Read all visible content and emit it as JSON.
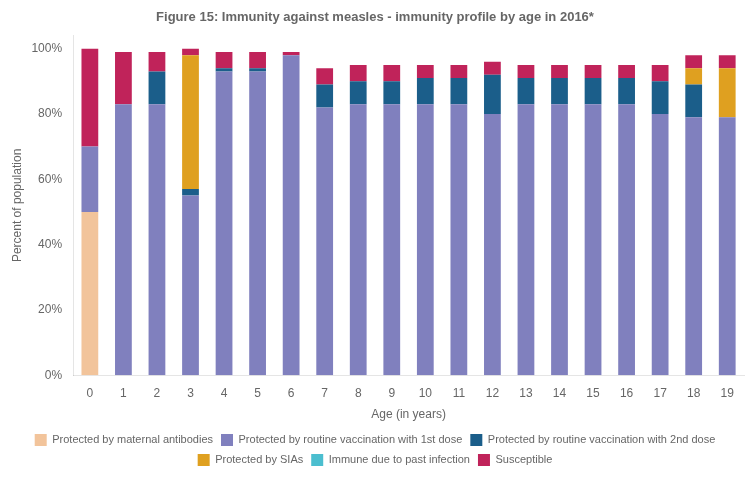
{
  "chart_data": {
    "type": "bar",
    "title": "Figure 15: Immunity against measles - immunity profile by age in 2016*",
    "xlabel": "Age (in years)",
    "ylabel": "Percent of population",
    "categories": [
      "0",
      "1",
      "2",
      "3",
      "4",
      "5",
      "6",
      "7",
      "8",
      "9",
      "10",
      "11",
      "12",
      "13",
      "14",
      "15",
      "16",
      "17",
      "18",
      "19"
    ],
    "series": [
      {
        "name": "Protected by maternal antibodies",
        "color": "#F2C49B",
        "values": [
          50,
          0,
          0,
          0,
          0,
          0,
          0,
          0,
          0,
          0,
          0,
          0,
          0,
          0,
          0,
          0,
          0,
          0,
          0,
          0
        ]
      },
      {
        "name": "Protected by routine vaccination with 1st dose",
        "color": "#8080BE",
        "values": [
          20,
          83,
          83,
          55,
          93,
          93,
          98,
          82,
          83,
          83,
          83,
          83,
          80,
          83,
          83,
          83,
          83,
          80,
          79,
          79
        ]
      },
      {
        "name": "Protected by routine vaccination with 2nd dose",
        "color": "#1B5E8A",
        "values": [
          0,
          0,
          10,
          2,
          1,
          1,
          0,
          7,
          7,
          7,
          8,
          8,
          12,
          8,
          8,
          8,
          8,
          10,
          10,
          0
        ]
      },
      {
        "name": "Protected by SIAs",
        "color": "#DFA020",
        "values": [
          0,
          0,
          0,
          41,
          0,
          0,
          0,
          0,
          0,
          0,
          0,
          0,
          0,
          0,
          0,
          0,
          0,
          0,
          5,
          15
        ]
      },
      {
        "name": "Immune due to past infection",
        "color": "#4BBECF",
        "values": [
          0,
          0,
          0,
          0,
          0,
          0,
          0,
          0,
          0,
          0,
          0,
          0,
          0,
          0,
          0,
          0,
          0,
          0,
          0,
          0
        ]
      },
      {
        "name": "Susceptible",
        "color": "#C0235A",
        "values": [
          30,
          16,
          6,
          2,
          5,
          5,
          1,
          5,
          5,
          5,
          4,
          4,
          4,
          4,
          4,
          4,
          4,
          5,
          4,
          4
        ]
      }
    ],
    "stacked": true,
    "legend": "bottom",
    "grid": false,
    "ylim": [
      0,
      104
    ],
    "yticks": [
      {
        "value": 0,
        "label": "0%"
      },
      {
        "value": 20,
        "label": "20%"
      },
      {
        "value": 40,
        "label": "40%"
      },
      {
        "value": 60,
        "label": "60%"
      },
      {
        "value": 80,
        "label": "80%"
      },
      {
        "value": 100,
        "label": "100%"
      }
    ]
  }
}
